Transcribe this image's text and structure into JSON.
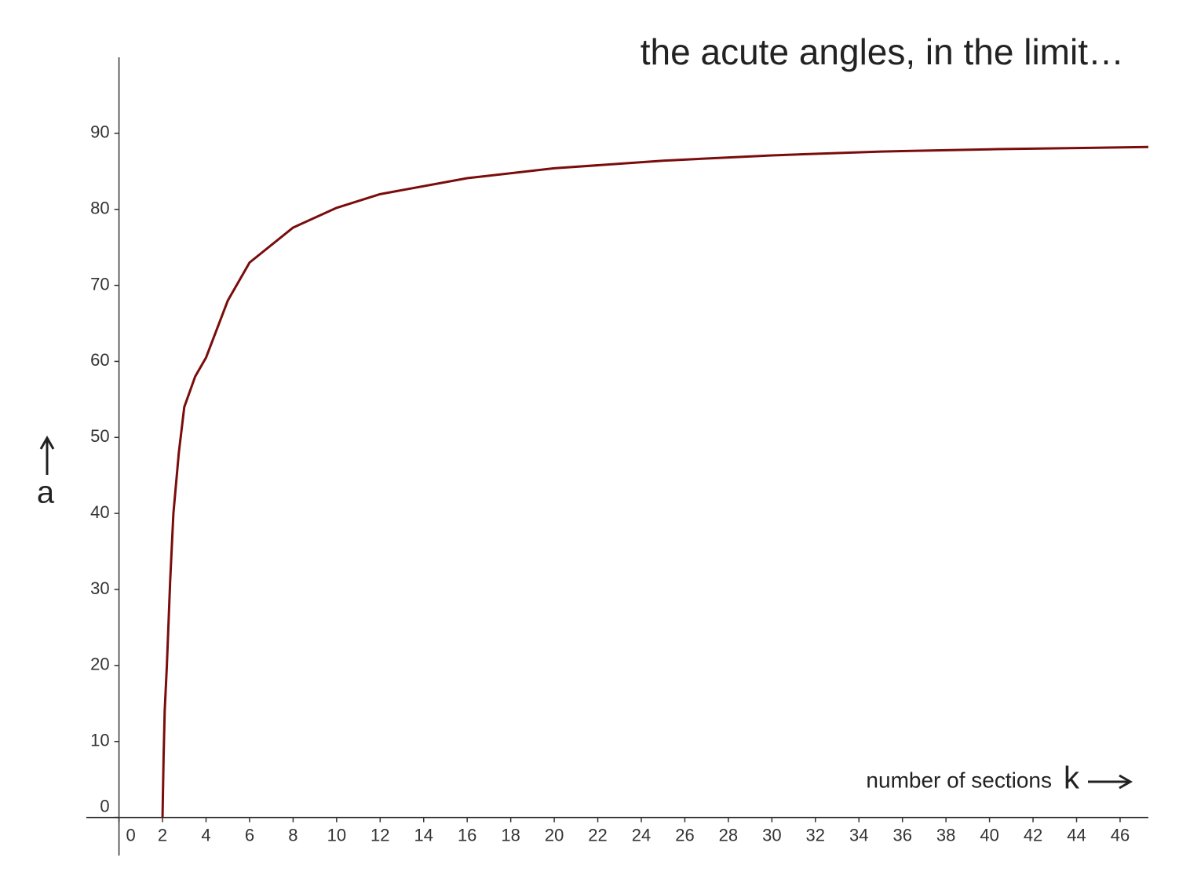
{
  "chart_data": {
    "type": "line",
    "title": "the acute angles, in the limit…",
    "xlabel": "number of sections",
    "xvar": "k",
    "ylabel": "a",
    "x": [
      2,
      2.05,
      2.1,
      2.2,
      2.35,
      2.5,
      2.75,
      3,
      3.5,
      4,
      5,
      6,
      8,
      10,
      12,
      16,
      20,
      25,
      30,
      35,
      40,
      47.3
    ],
    "series": [
      {
        "name": "a",
        "color": "#7a0c0c",
        "values": [
          0,
          8,
          14,
          20,
          31,
          40,
          48,
          54,
          58,
          60.5,
          68,
          73,
          77.6,
          80.2,
          82,
          84.1,
          85.4,
          86.4,
          87.1,
          87.6,
          87.9,
          88.2
        ]
      }
    ],
    "xlim": [
      -1.5,
      47.3
    ],
    "ylim": [
      -5,
      100
    ],
    "xticks": [
      0,
      2,
      4,
      6,
      8,
      10,
      12,
      14,
      16,
      18,
      20,
      22,
      24,
      26,
      28,
      30,
      32,
      34,
      36,
      38,
      40,
      42,
      44,
      46
    ],
    "yticks": [
      0,
      10,
      20,
      30,
      40,
      50,
      60,
      70,
      80,
      90
    ],
    "grid": false
  }
}
